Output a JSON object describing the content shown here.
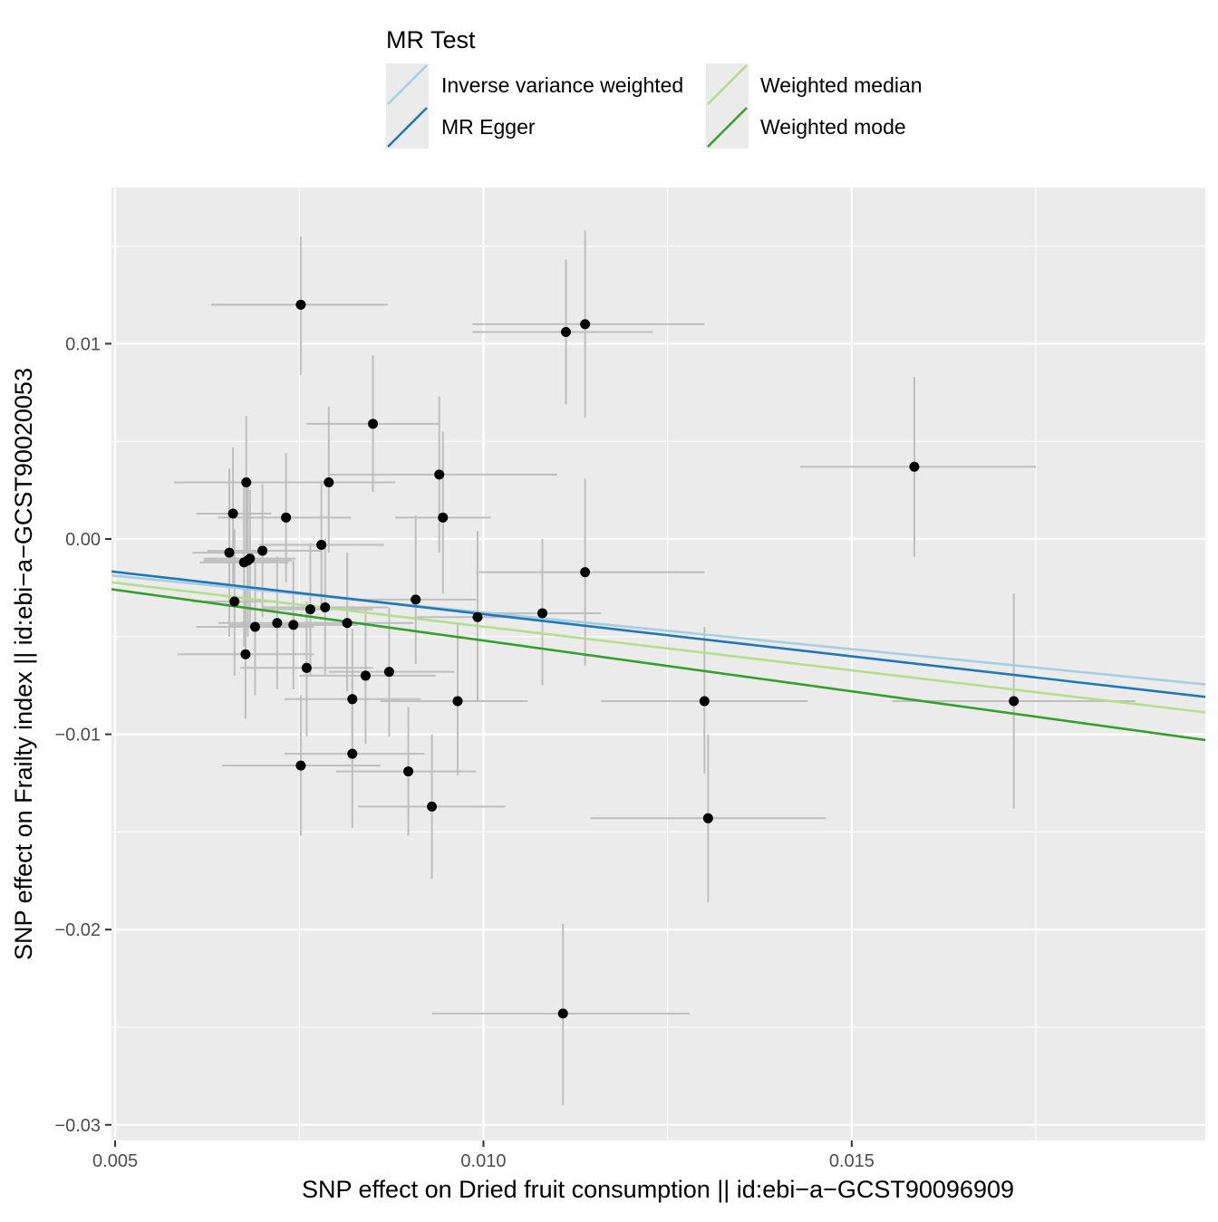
{
  "legend": {
    "title": "MR Test",
    "entries": [
      {
        "label": "Inverse variance weighted",
        "color": "#A6CEE3"
      },
      {
        "label": "MR Egger",
        "color": "#1F78B4"
      },
      {
        "label": "Weighted median",
        "color": "#B2DF8A"
      },
      {
        "label": "Weighted mode",
        "color": "#33A02C"
      }
    ]
  },
  "chart_data": {
    "type": "scatter",
    "xlabel": "SNP effect on Dried fruit consumption || id:ebi−a−GCST90096909",
    "ylabel": "SNP effect on Frailty index || id:ebi−a−GCST90020053",
    "xlim": [
      0.00495,
      0.0198
    ],
    "ylim": [
      -0.0308,
      0.018
    ],
    "x_ticks": [
      0.005,
      0.01,
      0.015
    ],
    "x_tick_labels": [
      "0.005",
      "0.010",
      "0.015"
    ],
    "y_ticks": [
      0.01,
      0.0,
      -0.01,
      -0.02,
      -0.03
    ],
    "y_tick_labels": [
      "0.01",
      "0.00",
      "−0.01",
      "−0.02",
      "−0.03"
    ],
    "grid": true,
    "legend_position": "top",
    "point_color": "#000000",
    "errorbar_color": "#BEBEBE",
    "points": [
      {
        "x": 0.00655,
        "y": -0.0007,
        "xlo": 0.00605,
        "xhi": 0.00705,
        "ylo": -0.005,
        "yhi": 0.0036
      },
      {
        "x": 0.0066,
        "y": 0.0013,
        "xlo": 0.0061,
        "xhi": 0.00712,
        "ylo": -0.0025,
        "yhi": 0.0047
      },
      {
        "x": 0.00662,
        "y": -0.0032,
        "xlo": 0.00605,
        "xhi": 0.0072,
        "ylo": -0.007,
        "yhi": 0.0005
      },
      {
        "x": 0.00675,
        "y": -0.0012,
        "xlo": 0.00615,
        "xhi": 0.00735,
        "ylo": -0.0055,
        "yhi": 0.003
      },
      {
        "x": 0.00678,
        "y": 0.0029,
        "xlo": 0.0058,
        "xhi": 0.00775,
        "ylo": -0.0007,
        "yhi": 0.0063
      },
      {
        "x": 0.0068,
        "y": -0.0011,
        "xlo": 0.0062,
        "xhi": 0.0074,
        "ylo": -0.005,
        "yhi": 0.0028
      },
      {
        "x": 0.00677,
        "y": -0.0059,
        "xlo": 0.00585,
        "xhi": 0.0077,
        "ylo": -0.0092,
        "yhi": -0.0026
      },
      {
        "x": 0.00683,
        "y": -0.001,
        "xlo": 0.0062,
        "xhi": 0.00745,
        "ylo": -0.0045,
        "yhi": 0.0025
      },
      {
        "x": 0.0069,
        "y": -0.0045,
        "xlo": 0.0061,
        "xhi": 0.0077,
        "ylo": -0.008,
        "yhi": -0.001
      },
      {
        "x": 0.007,
        "y": -0.0006,
        "xlo": 0.00625,
        "xhi": 0.0078,
        "ylo": -0.004,
        "yhi": 0.0028
      },
      {
        "x": 0.0072,
        "y": -0.0043,
        "xlo": 0.0064,
        "xhi": 0.008,
        "ylo": -0.0077,
        "yhi": -0.0009
      },
      {
        "x": 0.00732,
        "y": 0.0011,
        "xlo": 0.0064,
        "xhi": 0.0082,
        "ylo": -0.0022,
        "yhi": 0.0044
      },
      {
        "x": 0.00742,
        "y": -0.0044,
        "xlo": 0.00655,
        "xhi": 0.0083,
        "ylo": -0.0077,
        "yhi": -0.0011
      },
      {
        "x": 0.00752,
        "y": -0.0116,
        "xlo": 0.00645,
        "xhi": 0.0086,
        "ylo": -0.0152,
        "yhi": -0.008
      },
      {
        "x": 0.00752,
        "y": 0.012,
        "xlo": 0.0063,
        "xhi": 0.0087,
        "ylo": 0.0084,
        "yhi": 0.0155
      },
      {
        "x": 0.0076,
        "y": -0.0066,
        "xlo": 0.0067,
        "xhi": 0.0085,
        "ylo": -0.0101,
        "yhi": -0.0032
      },
      {
        "x": 0.00765,
        "y": -0.0036,
        "xlo": 0.0068,
        "xhi": 0.0085,
        "ylo": -0.007,
        "yhi": -0.0002
      },
      {
        "x": 0.0078,
        "y": -0.0003,
        "xlo": 0.00695,
        "xhi": 0.00865,
        "ylo": -0.0036,
        "yhi": 0.003
      },
      {
        "x": 0.00785,
        "y": -0.0035,
        "xlo": 0.007,
        "xhi": 0.0087,
        "ylo": -0.007,
        "yhi": 0.0
      },
      {
        "x": 0.0079,
        "y": 0.0029,
        "xlo": 0.007,
        "xhi": 0.0088,
        "ylo": -0.0007,
        "yhi": 0.0068
      },
      {
        "x": 0.00815,
        "y": -0.0043,
        "xlo": 0.00725,
        "xhi": 0.00905,
        "ylo": -0.0078,
        "yhi": -0.0007
      },
      {
        "x": 0.00822,
        "y": -0.0082,
        "xlo": 0.0073,
        "xhi": 0.00915,
        "ylo": -0.0117,
        "yhi": -0.0046
      },
      {
        "x": 0.00822,
        "y": -0.011,
        "xlo": 0.0073,
        "xhi": 0.0092,
        "ylo": -0.0148,
        "yhi": -0.0072
      },
      {
        "x": 0.0084,
        "y": -0.007,
        "xlo": 0.0075,
        "xhi": 0.00935,
        "ylo": -0.0105,
        "yhi": -0.0035
      },
      {
        "x": 0.0085,
        "y": 0.0059,
        "xlo": 0.0076,
        "xhi": 0.0094,
        "ylo": 0.0024,
        "yhi": 0.0094
      },
      {
        "x": 0.00872,
        "y": -0.0068,
        "xlo": 0.0079,
        "xhi": 0.0096,
        "ylo": -0.0101,
        "yhi": -0.0035
      },
      {
        "x": 0.00898,
        "y": -0.0119,
        "xlo": 0.008,
        "xhi": 0.0099,
        "ylo": -0.0152,
        "yhi": -0.0086
      },
      {
        "x": 0.00908,
        "y": -0.0031,
        "xlo": 0.0083,
        "xhi": 0.0099,
        "ylo": -0.0064,
        "yhi": 0.0012
      },
      {
        "x": 0.0093,
        "y": -0.0137,
        "xlo": 0.0083,
        "xhi": 0.0103,
        "ylo": -0.0174,
        "yhi": -0.01
      },
      {
        "x": 0.0094,
        "y": 0.0033,
        "xlo": 0.0079,
        "xhi": 0.011,
        "ylo": -0.0007,
        "yhi": 0.0073
      },
      {
        "x": 0.00945,
        "y": 0.0011,
        "xlo": 0.0088,
        "xhi": 0.0101,
        "ylo": -0.0028,
        "yhi": 0.0055
      },
      {
        "x": 0.00965,
        "y": -0.0083,
        "xlo": 0.0086,
        "xhi": 0.0106,
        "ylo": -0.0121,
        "yhi": -0.0044
      },
      {
        "x": 0.00992,
        "y": -0.004,
        "xlo": 0.0091,
        "xhi": 0.0107,
        "ylo": -0.0083,
        "yhi": 0.0004
      },
      {
        "x": 0.0108,
        "y": -0.0038,
        "xlo": 0.01,
        "xhi": 0.0116,
        "ylo": -0.0075,
        "yhi": 0.0
      },
      {
        "x": 0.01112,
        "y": 0.0106,
        "xlo": 0.00985,
        "xhi": 0.0123,
        "ylo": 0.0069,
        "yhi": 0.0143
      },
      {
        "x": 0.01108,
        "y": -0.0243,
        "xlo": 0.0093,
        "xhi": 0.0128,
        "ylo": -0.029,
        "yhi": -0.0197
      },
      {
        "x": 0.01138,
        "y": 0.011,
        "xlo": 0.00985,
        "xhi": 0.013,
        "ylo": 0.0062,
        "yhi": 0.0158
      },
      {
        "x": 0.01138,
        "y": -0.0017,
        "xlo": 0.0099,
        "xhi": 0.013,
        "ylo": -0.0065,
        "yhi": 0.0031
      },
      {
        "x": 0.013,
        "y": -0.0083,
        "xlo": 0.0116,
        "xhi": 0.0144,
        "ylo": -0.012,
        "yhi": -0.0045
      },
      {
        "x": 0.01305,
        "y": -0.0143,
        "xlo": 0.01145,
        "xhi": 0.01465,
        "ylo": -0.0186,
        "yhi": -0.01
      },
      {
        "x": 0.01585,
        "y": 0.0037,
        "xlo": 0.0143,
        "xhi": 0.0175,
        "ylo": -0.0009,
        "yhi": 0.0083
      },
      {
        "x": 0.0172,
        "y": -0.0083,
        "xlo": 0.01555,
        "xhi": 0.01885,
        "ylo": -0.0138,
        "yhi": -0.0028
      }
    ],
    "series": [
      {
        "name": "Inverse variance weighted",
        "intercept": 0.0,
        "slope": -0.376,
        "color": "#A6CEE3"
      },
      {
        "name": "MR Egger",
        "intercept": 0.00048,
        "slope": -0.4326,
        "color": "#1F78B4"
      },
      {
        "name": "Weighted median",
        "intercept": 0.0,
        "slope": -0.4483,
        "color": "#B2DF8A"
      },
      {
        "name": "Weighted mode",
        "intercept": 0.0,
        "slope": -0.52,
        "color": "#33A02C"
      }
    ]
  }
}
